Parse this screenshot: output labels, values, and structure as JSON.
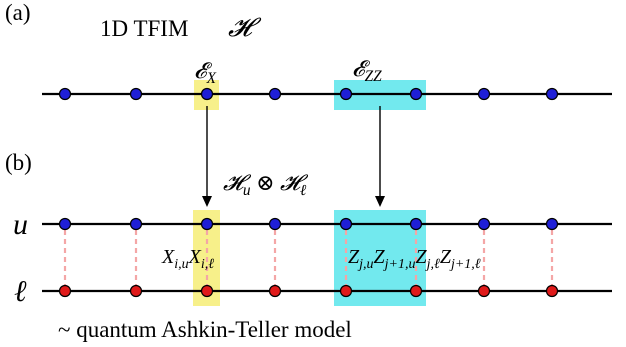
{
  "panel_a": {
    "tag": "(a)",
    "title": "1D TFIM",
    "hamiltonian_symbol": "𝓗",
    "x_term_label": "𝓔",
    "x_term_sub": "X",
    "zz_term_label": "𝓔",
    "zz_term_sub": "ZZ"
  },
  "panel_b": {
    "tag": "(b)",
    "product_space": {
      "h1": "𝓗",
      "s1": "u",
      "op": " ⊗ ",
      "h2": "𝓗",
      "s2": "ℓ"
    },
    "upper_label": "u",
    "lower_label": "ℓ",
    "x_coupling": {
      "X1": "X",
      "X1sub": "i,u",
      "X2": "X",
      "X2sub": "i,ℓ"
    },
    "zz_coupling": {
      "Z1": "Z",
      "Z1sub": "j,u",
      "Z2": "Z",
      "Z2sub": "j+1,u",
      "Z3": "Z",
      "Z3sub": "j,ℓ",
      "Z4": "Z",
      "Z4sub": "j+1,ℓ"
    },
    "caption": "~ quantum Ashkin-Teller model"
  },
  "colors": {
    "site_upper": "#1f1fd6",
    "site_lower": "#e01a1a",
    "x_highlight": "#f7f08a",
    "zz_highlight": "#72e9ee",
    "rung": "#f4a6a6"
  }
}
